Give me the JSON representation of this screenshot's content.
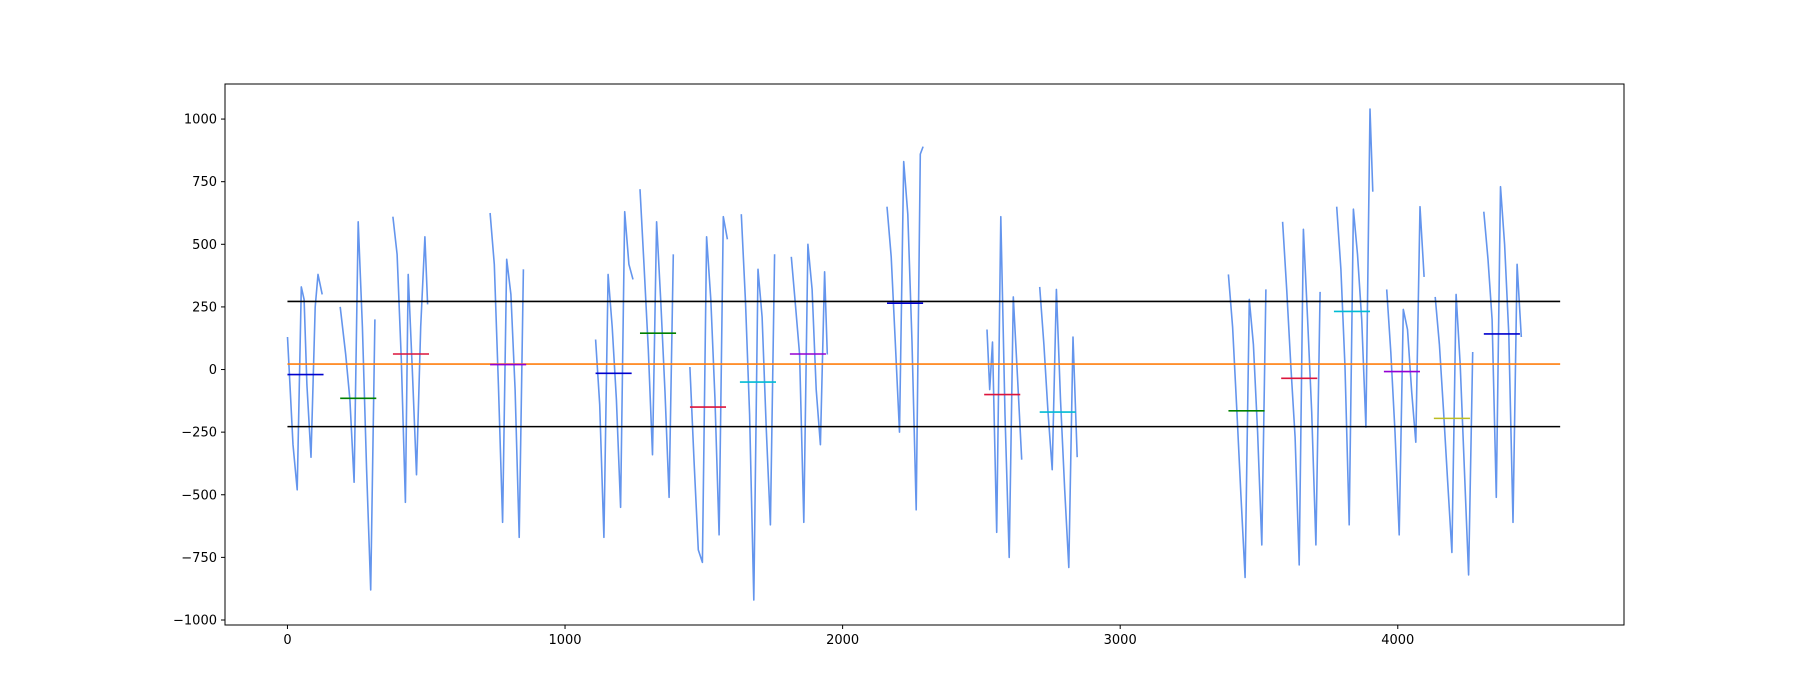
{
  "chart_data": {
    "type": "line",
    "title": "",
    "xlabel": "",
    "ylabel": "",
    "xlim": [
      -225,
      4815
    ],
    "ylim": [
      -1020,
      1140
    ],
    "x_ticks": [
      0,
      1000,
      2000,
      3000,
      4000
    ],
    "x_tick_labels": [
      "0",
      "1000",
      "2000",
      "3000",
      "4000"
    ],
    "y_ticks": [
      -1000,
      -750,
      -500,
      -250,
      0,
      250,
      500,
      750,
      1000
    ],
    "y_tick_labels": [
      "−1000",
      "−750",
      "−500",
      "−250",
      "0",
      "250",
      "500",
      "750",
      "1000"
    ],
    "grid": false,
    "reference_lines": [
      {
        "y": 272,
        "x_range": [
          0,
          4585
        ],
        "color": "#000000"
      },
      {
        "y": 22,
        "x_range": [
          0,
          4585
        ],
        "color": "#ff7f0e"
      },
      {
        "y": -228,
        "x_range": [
          0,
          4585
        ],
        "color": "#000000"
      }
    ],
    "signal_color": "#6495ed",
    "signal_segments": [
      {
        "x": [
          0,
          10,
          20,
          35,
          50,
          60,
          70,
          85,
          100,
          110,
          125
        ],
        "y": [
          130,
          -80,
          -300,
          -480,
          330,
          280,
          -60,
          -350,
          250,
          380,
          300
        ]
      },
      {
        "x": [
          190,
          210,
          225,
          240,
          255,
          270,
          285,
          300,
          315
        ],
        "y": [
          250,
          60,
          -120,
          -450,
          590,
          170,
          -400,
          -880,
          200
        ]
      },
      {
        "x": [
          380,
          395,
          410,
          425,
          435,
          450,
          465,
          480,
          495,
          505
        ],
        "y": [
          610,
          460,
          40,
          -530,
          380,
          -10,
          -420,
          170,
          530,
          260
        ]
      },
      {
        "x": [
          730,
          745,
          760,
          775,
          790,
          805,
          820,
          835,
          850
        ],
        "y": [
          625,
          420,
          -60,
          -610,
          440,
          300,
          -80,
          -670,
          400
        ]
      },
      {
        "x": [
          1110,
          1125,
          1140,
          1155,
          1170,
          1185,
          1200,
          1215,
          1230,
          1245
        ],
        "y": [
          120,
          -140,
          -670,
          380,
          170,
          -120,
          -550,
          630,
          420,
          360
        ]
      },
      {
        "x": [
          1270,
          1285,
          1300,
          1315,
          1330,
          1345,
          1360,
          1375,
          1390
        ],
        "y": [
          720,
          410,
          80,
          -340,
          590,
          270,
          -90,
          -510,
          460
        ]
      },
      {
        "x": [
          1450,
          1465,
          1480,
          1495,
          1510,
          1525,
          1540,
          1555,
          1570,
          1585
        ],
        "y": [
          10,
          -370,
          -720,
          -770,
          530,
          280,
          -110,
          -660,
          610,
          520
        ]
      },
      {
        "x": [
          1635,
          1650,
          1665,
          1680,
          1695,
          1710,
          1725,
          1740,
          1755
        ],
        "y": [
          620,
          270,
          -180,
          -920,
          400,
          210,
          -240,
          -620,
          460
        ]
      },
      {
        "x": [
          1815,
          1830,
          1845,
          1860,
          1875,
          1890,
          1905,
          1920,
          1935,
          1945
        ],
        "y": [
          450,
          260,
          60,
          -610,
          500,
          320,
          -80,
          -300,
          390,
          60
        ]
      },
      {
        "x": [
          2160,
          2175,
          2190,
          2205,
          2220,
          2235,
          2250,
          2265,
          2280,
          2290
        ],
        "y": [
          650,
          450,
          100,
          -250,
          830,
          620,
          110,
          -560,
          860,
          890
        ]
      },
      {
        "x": [
          2520,
          2530,
          2540,
          2555,
          2570,
          2585,
          2600,
          2615,
          2630,
          2645
        ],
        "y": [
          160,
          -80,
          110,
          -650,
          610,
          -180,
          -750,
          290,
          -30,
          -360
        ]
      },
      {
        "x": [
          2710,
          2725,
          2740,
          2755,
          2770,
          2785,
          2800,
          2815,
          2830,
          2845
        ],
        "y": [
          330,
          100,
          -170,
          -400,
          320,
          -120,
          -480,
          -790,
          130,
          -350
        ]
      },
      {
        "x": [
          3390,
          3405,
          3420,
          3435,
          3450,
          3465,
          3480,
          3495,
          3510,
          3525
        ],
        "y": [
          380,
          170,
          -160,
          -500,
          -830,
          280,
          100,
          -250,
          -700,
          320
        ]
      },
      {
        "x": [
          3585,
          3600,
          3615,
          3630,
          3645,
          3660,
          3675,
          3690,
          3705,
          3720
        ],
        "y": [
          590,
          320,
          10,
          -270,
          -780,
          560,
          200,
          -170,
          -700,
          310
        ]
      },
      {
        "x": [
          3780,
          3795,
          3810,
          3825,
          3840,
          3855,
          3870,
          3885,
          3900,
          3910
        ],
        "y": [
          650,
          400,
          10,
          -620,
          640,
          460,
          200,
          -230,
          1040,
          710
        ]
      },
      {
        "x": [
          3960,
          3975,
          3990,
          4005,
          4020,
          4035,
          4050,
          4065,
          4080,
          4095
        ],
        "y": [
          320,
          70,
          -250,
          -660,
          240,
          160,
          -90,
          -290,
          650,
          370
        ]
      },
      {
        "x": [
          4135,
          4150,
          4165,
          4180,
          4195,
          4210,
          4225,
          4240,
          4255,
          4270
        ],
        "y": [
          290,
          100,
          -170,
          -450,
          -730,
          300,
          20,
          -400,
          -820,
          70
        ]
      },
      {
        "x": [
          4310,
          4325,
          4340,
          4355,
          4370,
          4385,
          4400,
          4415,
          4430,
          4445
        ],
        "y": [
          630,
          440,
          200,
          -510,
          730,
          500,
          140,
          -610,
          420,
          130
        ]
      }
    ],
    "mean_segments": [
      {
        "x": [
          0,
          130
        ],
        "y": -20,
        "color": "#0000cd"
      },
      {
        "x": [
          190,
          320
        ],
        "y": -115,
        "color": "#008000"
      },
      {
        "x": [
          380,
          510
        ],
        "y": 62,
        "color": "#dc143c"
      },
      {
        "x": [
          730,
          860
        ],
        "y": 20,
        "color": "#9400d3"
      },
      {
        "x": [
          1110,
          1240
        ],
        "y": -15,
        "color": "#0000cd"
      },
      {
        "x": [
          1270,
          1400
        ],
        "y": 145,
        "color": "#008000"
      },
      {
        "x": [
          1450,
          1580
        ],
        "y": -150,
        "color": "#dc143c"
      },
      {
        "x": [
          1630,
          1760
        ],
        "y": -50,
        "color": "#00bcd4"
      },
      {
        "x": [
          1810,
          1940
        ],
        "y": 62,
        "color": "#9400d3"
      },
      {
        "x": [
          2160,
          2290
        ],
        "y": 265,
        "color": "#0000cd"
      },
      {
        "x": [
          2510,
          2640
        ],
        "y": -100,
        "color": "#dc143c"
      },
      {
        "x": [
          2710,
          2840
        ],
        "y": -170,
        "color": "#00bcd4"
      },
      {
        "x": [
          3390,
          3520
        ],
        "y": -165,
        "color": "#008000"
      },
      {
        "x": [
          3580,
          3710
        ],
        "y": -35,
        "color": "#dc143c"
      },
      {
        "x": [
          3770,
          3900
        ],
        "y": 232,
        "color": "#00bcd4"
      },
      {
        "x": [
          3950,
          4080
        ],
        "y": -8,
        "color": "#9400d3"
      },
      {
        "x": [
          4130,
          4260
        ],
        "y": -195,
        "color": "#bcbd22"
      },
      {
        "x": [
          4310,
          4440
        ],
        "y": 142,
        "color": "#0000cd"
      }
    ]
  }
}
